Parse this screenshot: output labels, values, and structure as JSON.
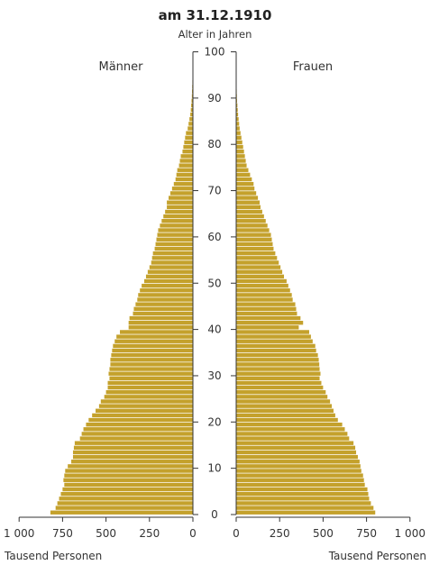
{
  "chart_data": {
    "type": "bar",
    "title": "am 31.12.1910",
    "axis_center_label": "Alter in Jahren",
    "left_label": "Männer",
    "right_label": "Frauen",
    "xlabel_left": "Tausend Personen",
    "xlabel_right": "Tausend Personen",
    "bar_color": "#c4a12c",
    "axis_color": "#333333",
    "age_range": [
      0,
      100
    ],
    "age_ticks": [
      "0",
      "10",
      "20",
      "30",
      "40",
      "50",
      "60",
      "70",
      "80",
      "90",
      "100"
    ],
    "x_ticks_left": [
      "1 000",
      "750",
      "500",
      "250",
      "0"
    ],
    "x_ticks_right": [
      "0",
      "250",
      "500",
      "750",
      "1 000"
    ],
    "xlim": [
      0,
      1000
    ],
    "ages": [
      0,
      1,
      2,
      3,
      4,
      5,
      6,
      7,
      8,
      9,
      10,
      11,
      12,
      13,
      14,
      15,
      16,
      17,
      18,
      19,
      20,
      21,
      22,
      23,
      24,
      25,
      26,
      27,
      28,
      29,
      30,
      31,
      32,
      33,
      34,
      35,
      36,
      37,
      38,
      39,
      40,
      41,
      42,
      43,
      44,
      45,
      46,
      47,
      48,
      49,
      50,
      51,
      52,
      53,
      54,
      55,
      56,
      57,
      58,
      59,
      60,
      61,
      62,
      63,
      64,
      65,
      66,
      67,
      68,
      69,
      70,
      71,
      72,
      73,
      74,
      75,
      76,
      77,
      78,
      79,
      80,
      81,
      82,
      83,
      84,
      85,
      86,
      87,
      88,
      89,
      90,
      91,
      92,
      93,
      94,
      95,
      96,
      97,
      98,
      99
    ],
    "series": [
      {
        "name": "Männer",
        "values": [
          820,
          790,
          780,
          770,
          760,
          750,
          740,
          745,
          740,
          735,
          720,
          700,
          690,
          690,
          685,
          680,
          650,
          640,
          630,
          615,
          600,
          580,
          560,
          540,
          530,
          510,
          500,
          490,
          490,
          480,
          485,
          480,
          475,
          475,
          470,
          465,
          460,
          450,
          440,
          420,
          370,
          370,
          365,
          345,
          340,
          330,
          320,
          315,
          305,
          295,
          280,
          270,
          260,
          250,
          240,
          235,
          230,
          220,
          215,
          210,
          205,
          200,
          190,
          180,
          170,
          160,
          150,
          150,
          140,
          130,
          120,
          110,
          100,
          95,
          90,
          80,
          75,
          70,
          60,
          55,
          50,
          45,
          40,
          30,
          25,
          20,
          15,
          12,
          10,
          8,
          6,
          5,
          4,
          3,
          2,
          1,
          1,
          0,
          0,
          0
        ]
      },
      {
        "name": "Frauen",
        "values": [
          800,
          790,
          775,
          765,
          760,
          755,
          740,
          735,
          730,
          720,
          715,
          710,
          700,
          690,
          685,
          675,
          650,
          640,
          625,
          610,
          585,
          570,
          560,
          550,
          540,
          525,
          515,
          500,
          490,
          480,
          485,
          480,
          478,
          475,
          470,
          460,
          455,
          440,
          430,
          420,
          360,
          385,
          370,
          350,
          345,
          340,
          325,
          320,
          310,
          300,
          290,
          275,
          265,
          255,
          245,
          235,
          225,
          215,
          210,
          205,
          200,
          190,
          180,
          170,
          160,
          150,
          140,
          135,
          125,
          115,
          105,
          100,
          90,
          80,
          70,
          60,
          55,
          50,
          45,
          40,
          35,
          30,
          25,
          20,
          17,
          14,
          11,
          9,
          7,
          5,
          4,
          3,
          2,
          1,
          1,
          1,
          0,
          0,
          0,
          0
        ]
      }
    ]
  }
}
